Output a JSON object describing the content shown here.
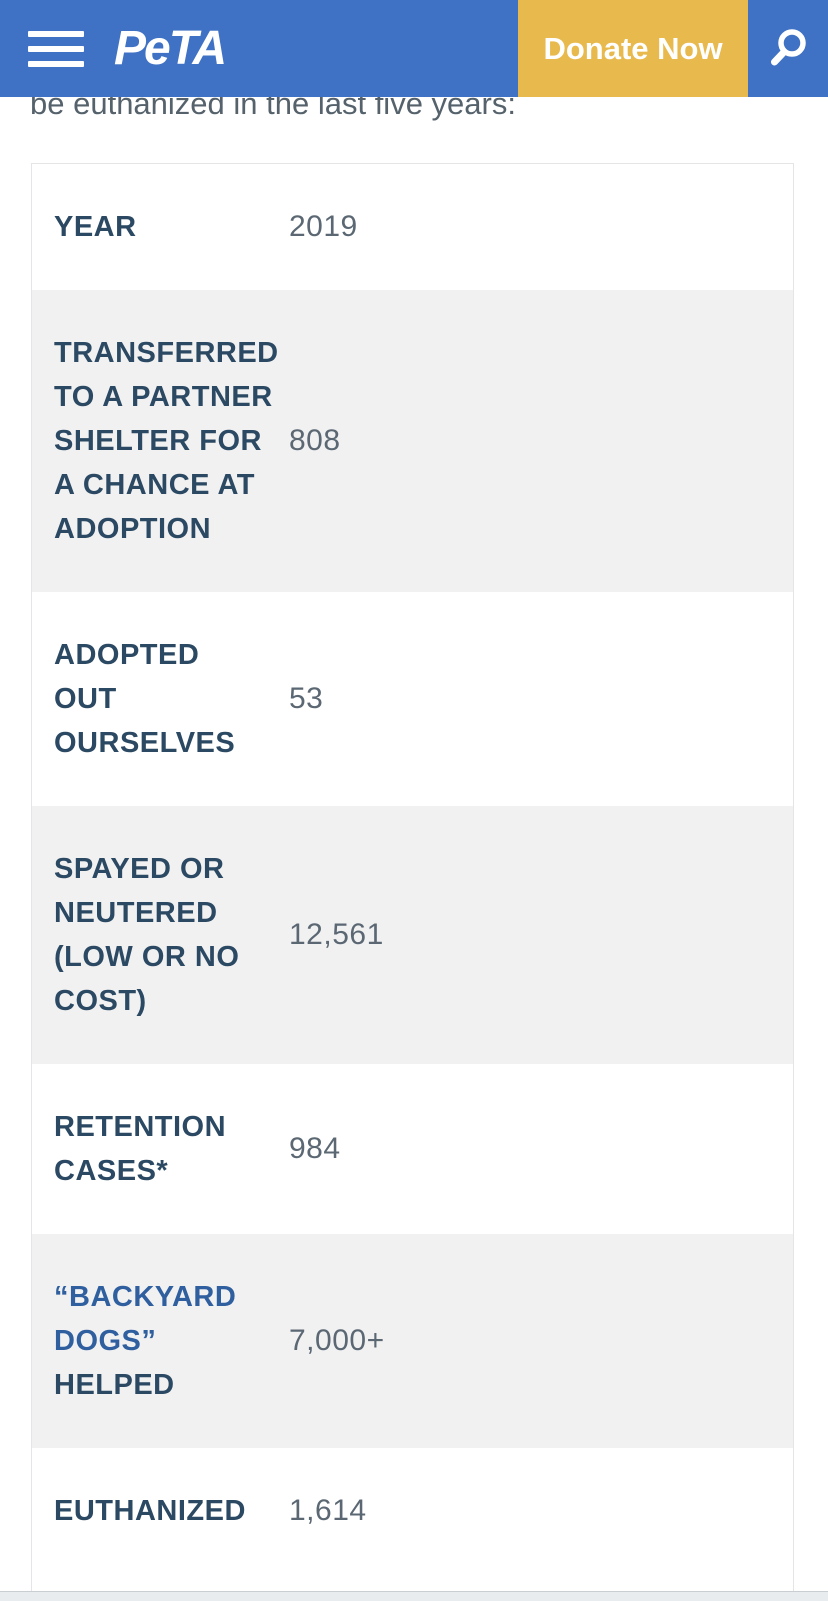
{
  "header": {
    "logo_text": "PeTA",
    "donate_label": "Donate Now",
    "colors": {
      "bar_blue": "#3f72c4",
      "donate_yellow": "#e8b94d",
      "icon_white": "#ffffff"
    },
    "icons": {
      "menu": "hamburger-icon",
      "search": "magnifier-icon"
    }
  },
  "intro": {
    "visible_line": "be euthanized in the last five years:"
  },
  "table": {
    "rows": [
      {
        "shaded": false,
        "label": "YEAR",
        "lines": [
          {
            "t": "YEAR"
          }
        ],
        "value": "2019"
      },
      {
        "shaded": true,
        "label": "TRANSFERRED TO A PARTNER SHELTER FOR A CHANCE AT ADOPTION",
        "lines": [
          {
            "t": "TRANSFERRED"
          },
          {
            "t": "TO A PARTNER"
          },
          {
            "t": "SHELTER FOR"
          },
          {
            "t": "A CHANCE AT"
          },
          {
            "t": "ADOPTION"
          }
        ],
        "value": "808"
      },
      {
        "shaded": false,
        "label": "ADOPTED OUT OURSELVES",
        "lines": [
          {
            "t": "ADOPTED"
          },
          {
            "t": "OUT"
          },
          {
            "t": "OURSELVES"
          }
        ],
        "value": "53"
      },
      {
        "shaded": true,
        "label": "SPAYED OR NEUTERED (LOW OR NO COST)",
        "lines": [
          {
            "t": "SPAYED OR"
          },
          {
            "t": "NEUTERED"
          },
          {
            "t": "(LOW OR NO"
          },
          {
            "t": "COST)"
          }
        ],
        "value": "12,561"
      },
      {
        "shaded": false,
        "label": "RETENTION CASES*",
        "lines": [
          {
            "t": "RETENTION"
          },
          {
            "t": "CASES*"
          }
        ],
        "value": "984"
      },
      {
        "shaded": true,
        "label": "“BACKYARD DOGS” HELPED",
        "lines": [
          {
            "t": "“BACKYARD",
            "link": true
          },
          {
            "t": "DOGS”",
            "link": true
          },
          {
            "t": "HELPED"
          }
        ],
        "value": "7,000+"
      },
      {
        "shaded": false,
        "label": "EUTHANIZED",
        "lines": [
          {
            "t": "EUTHANIZED"
          }
        ],
        "value": "1,614"
      }
    ],
    "text_colors": {
      "label_navy": "#2b4963",
      "label_link_blue": "#2f5f9f",
      "value_gray": "#5b6873"
    },
    "shaded_row_bg": "#f1f1f2"
  }
}
